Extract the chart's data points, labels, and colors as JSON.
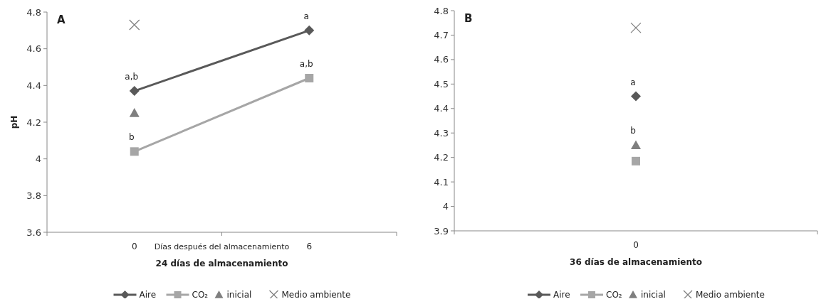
{
  "chart_data": [
    {
      "type": "line",
      "title": "A",
      "xlabel": "24 días de almacenamiento",
      "ylabel": "pH",
      "categories": [
        "0",
        "6"
      ],
      "ylim": [
        3.6,
        4.8
      ],
      "yticks": [
        3.6,
        3.8,
        4,
        4.2,
        4.4,
        4.6,
        4.8
      ],
      "grid": false,
      "legend": "bottom",
      "line_style": "solid",
      "series": [
        {
          "name": "Aire",
          "marker": "diamond",
          "color": "#595959",
          "values": [
            4.37,
            4.7
          ]
        },
        {
          "name": "CO₂",
          "marker": "square",
          "color": "#a6a6a6",
          "values": [
            4.04,
            4.44
          ]
        },
        {
          "name": "inicial",
          "type": "scatter",
          "marker": "triangle",
          "color": "#7f7f7f",
          "values": [
            4.25,
            null
          ]
        },
        {
          "name": "Medio ambiente",
          "type": "scatter",
          "marker": "cross",
          "color": "#7f7f7f",
          "values": [
            4.73,
            null
          ]
        }
      ],
      "annotations": [
        "Días después del almacenamiento",
        {
          "text": "a,b",
          "x": "0",
          "y": 4.37
        },
        {
          "text": "a",
          "x": "6",
          "y": 4.7
        },
        {
          "text": "b",
          "x": "0",
          "y": 4.04
        },
        {
          "text": "a,b",
          "x": "6",
          "y": 4.44
        }
      ]
    },
    {
      "type": "line",
      "title": "B",
      "xlabel": "36 días de almacenamiento",
      "categories": [
        "0"
      ],
      "ylim": [
        3.9,
        4.8
      ],
      "yticks": [
        3.9,
        4,
        4.1,
        4.2,
        4.3,
        4.4,
        4.5,
        4.6,
        4.7,
        4.8
      ],
      "grid": false,
      "legend": "bottom",
      "line_style": "solid",
      "series": [
        {
          "name": "Aire",
          "marker": "diamond",
          "color": "#595959",
          "values": [
            4.45
          ]
        },
        {
          "name": "CO₂",
          "marker": "square",
          "color": "#a6a6a6",
          "values": [
            4.185
          ]
        },
        {
          "name": "inicial",
          "type": "scatter",
          "marker": "triangle",
          "color": "#7f7f7f",
          "values": [
            4.25
          ]
        },
        {
          "name": "Medio ambiente",
          "type": "scatter",
          "marker": "cross",
          "color": "#7f7f7f",
          "values": [
            4.73
          ]
        }
      ],
      "annotations": [
        {
          "text": "a",
          "x": "0",
          "y": 4.45
        },
        {
          "text": "b",
          "x": "0",
          "y": 4.25
        }
      ]
    }
  ]
}
